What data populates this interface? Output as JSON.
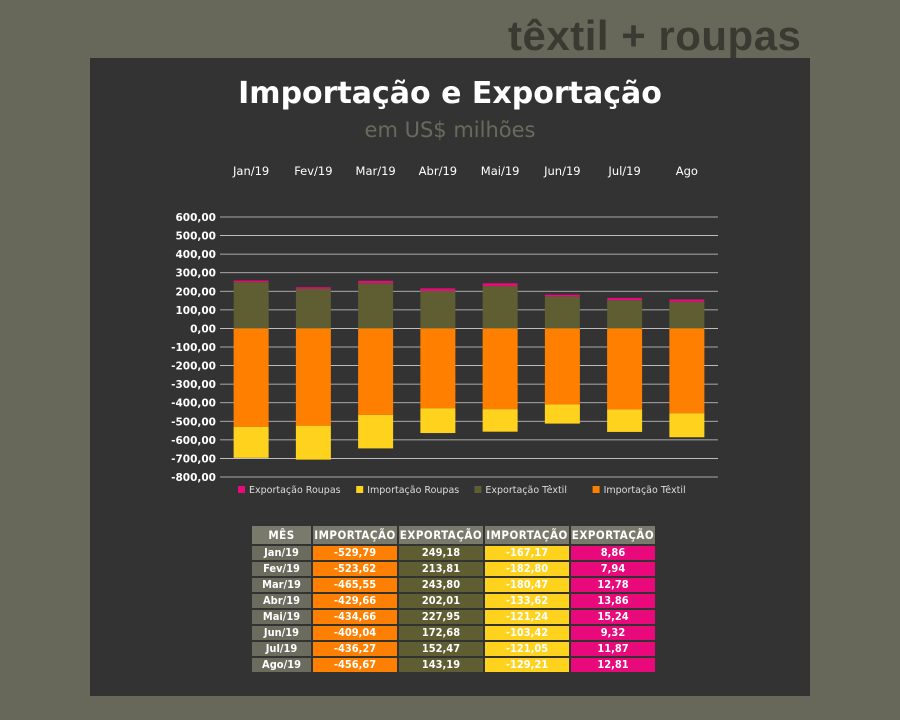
{
  "brand": "têxtil + roupas",
  "chart_data": {
    "type": "bar",
    "stacked": true,
    "title": "Importação e Exportação",
    "subtitle": "em US$ milhões",
    "categories": [
      "Jan/19",
      "Fev/19",
      "Mar/19",
      "Abr/19",
      "Mai/19",
      "Jun/19",
      "Jul/19",
      "Ago"
    ],
    "ylim": [
      -800,
      600
    ],
    "yticks": [
      "600,00",
      "500,00",
      "400,00",
      "300,00",
      "200,00",
      "100,00",
      "0,00",
      "-100,00",
      "-200,00",
      "-300,00",
      "-400,00",
      "-500,00",
      "-600,00",
      "-700,00",
      "-800,00"
    ],
    "grid": true,
    "legend_position": "bottom",
    "series": [
      {
        "name": "Exportação Roupas",
        "color": "#e8097a",
        "values": [
          8.86,
          7.94,
          12.78,
          13.86,
          15.24,
          9.32,
          11.87,
          12.81
        ]
      },
      {
        "name": "Importação Roupas",
        "color": "#ffd21e",
        "values": [
          -167.17,
          -182.8,
          -180.47,
          -133.62,
          -121.24,
          -103.42,
          -121.05,
          -129.21
        ]
      },
      {
        "name": "Exportação Têxtil",
        "color": "#5e5e32",
        "values": [
          249.18,
          213.81,
          243.8,
          202.01,
          227.95,
          172.68,
          152.47,
          143.19
        ]
      },
      {
        "name": "Importação Têxtil",
        "color": "#ff8000",
        "values": [
          -529.79,
          -523.62,
          -465.55,
          -429.66,
          -434.66,
          -409.04,
          -436.27,
          -456.67
        ]
      }
    ]
  },
  "table": {
    "headers": [
      "MÊS",
      "IMPORTAÇÃO",
      "EXPORTAÇÃO",
      "IMPORTAÇÃO",
      "EXPORTAÇÃO"
    ],
    "rows": [
      [
        "Jan/19",
        "-529,79",
        "249,18",
        "-167,17",
        "8,86"
      ],
      [
        "Fev/19",
        "-523,62",
        "213,81",
        "-182,80",
        "7,94"
      ],
      [
        "Mar/19",
        "-465,55",
        "243,80",
        "-180,47",
        "12,78"
      ],
      [
        "Abr/19",
        "-429,66",
        "202,01",
        "-133,62",
        "13,86"
      ],
      [
        "Mai/19",
        "-434,66",
        "227,95",
        "-121,24",
        "15,24"
      ],
      [
        "Jun/19",
        "-409,04",
        "172,68",
        "-103,42",
        "9,32"
      ],
      [
        "Jul/19",
        "-436,27",
        "152,47",
        "-121,05",
        "11,87"
      ],
      [
        "Ago/19",
        "-456,67",
        "143,19",
        "-129,21",
        "12,81"
      ]
    ]
  }
}
